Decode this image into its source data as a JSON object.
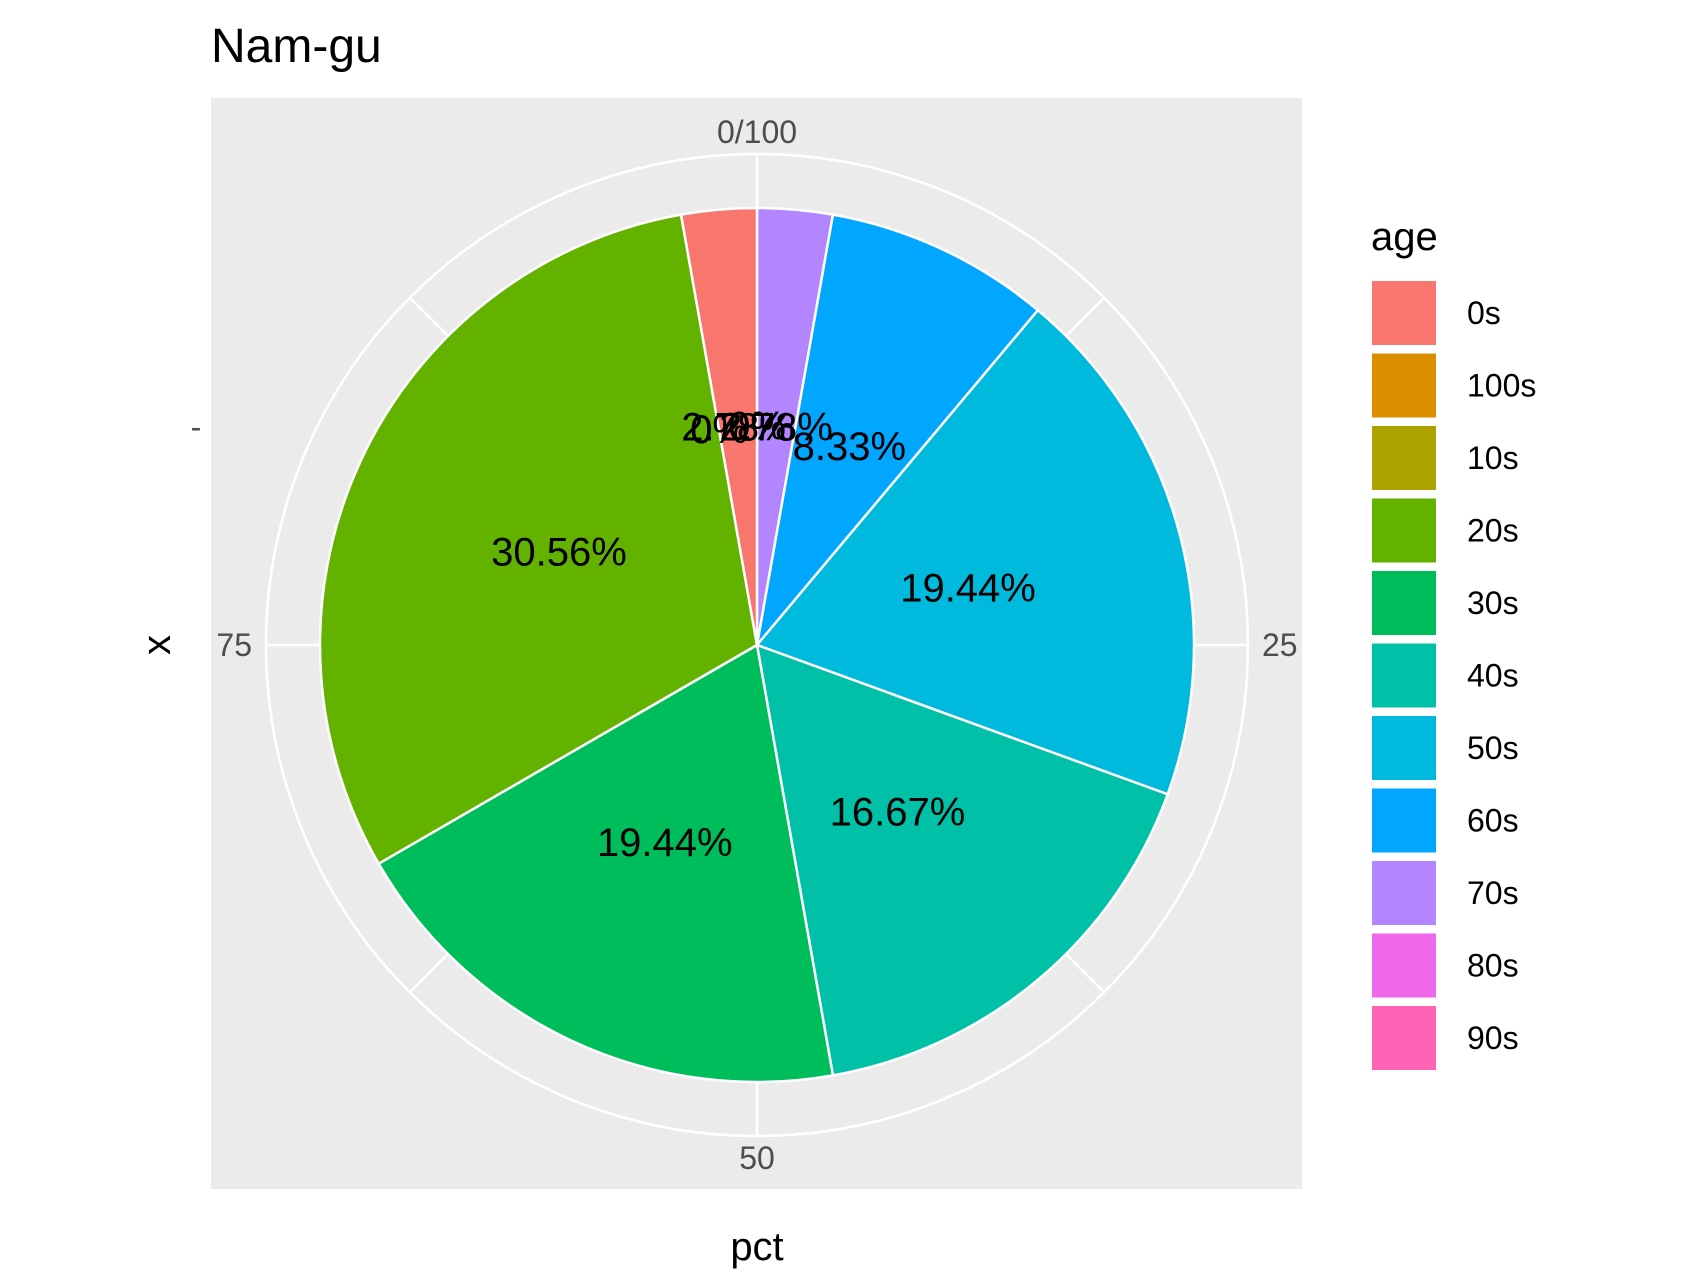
{
  "chart_data": {
    "type": "pie",
    "title": "Nam-gu",
    "xlabel": "pct",
    "ylabel": "x",
    "y_tick_label": "-",
    "theta_ticks": [
      "0/100",
      "25",
      "50",
      "75"
    ],
    "theta_tick_values": [
      0,
      25,
      50,
      75
    ],
    "legend": {
      "title": "age",
      "position": "right"
    },
    "background_color": "#ebebeb",
    "grid_color": "#ffffff",
    "categories": [
      "0s",
      "100s",
      "10s",
      "20s",
      "30s",
      "40s",
      "50s",
      "60s",
      "70s",
      "80s",
      "90s"
    ],
    "colors": [
      "#F8766D",
      "#DB8E00",
      "#AEA200",
      "#64B200",
      "#00BD5C",
      "#00C1A7",
      "#00BADE",
      "#00A6FF",
      "#B385FF",
      "#EF67EB",
      "#FF63B6"
    ],
    "values": [
      2.78,
      0,
      0,
      30.56,
      19.44,
      16.67,
      19.44,
      8.33,
      2.78,
      0,
      0
    ],
    "labels": [
      "2.78%",
      "0%",
      "0%",
      "30.56%",
      "19.44%",
      "16.67%",
      "19.44%",
      "8.33%",
      "2.78%",
      "0%",
      "0%"
    ]
  }
}
